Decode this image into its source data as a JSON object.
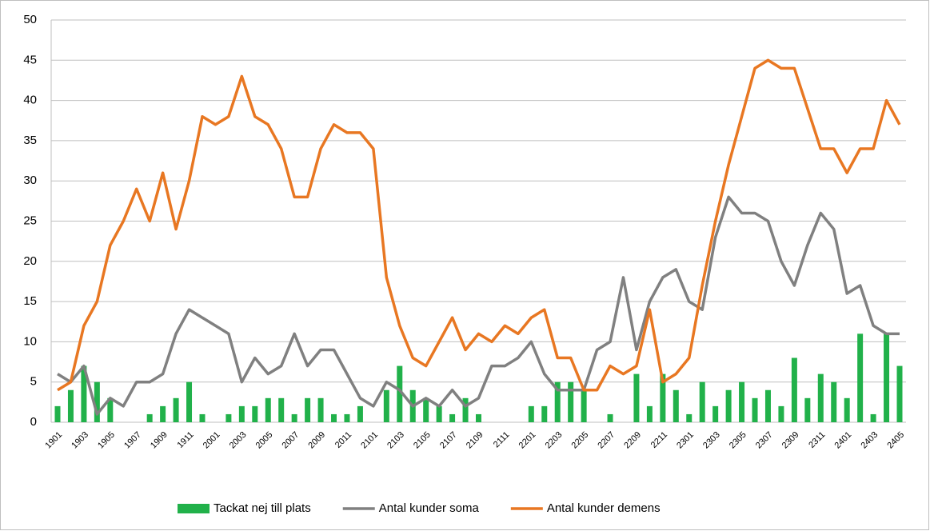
{
  "chart_data": {
    "type": "combo",
    "categories": [
      "1901",
      null,
      "1903",
      null,
      "1905",
      null,
      "1907",
      null,
      "1909",
      null,
      "1911",
      null,
      "2001",
      null,
      "2003",
      null,
      "2005",
      null,
      "2007",
      null,
      "2009",
      null,
      "2011",
      null,
      "2101",
      null,
      "2103",
      null,
      "2105",
      null,
      "2107",
      null,
      "2109",
      null,
      "2111",
      null,
      "2201",
      null,
      "2203",
      null,
      "2205",
      null,
      "2207",
      null,
      "2209",
      null,
      "2211",
      null,
      "2301",
      null,
      "2303",
      null,
      "2305",
      null,
      "2307",
      null,
      "2309",
      null,
      "2311",
      null,
      "2401",
      null,
      "2403",
      null,
      "2405"
    ],
    "series": [
      {
        "name": "Tackat nej till plats",
        "kind": "bar",
        "color": "#21b14a",
        "values": [
          2,
          4,
          7,
          5,
          3,
          0,
          0,
          1,
          2,
          3,
          5,
          1,
          0,
          1,
          2,
          2,
          3,
          3,
          1,
          3,
          3,
          1,
          1,
          2,
          0,
          4,
          7,
          4,
          3,
          2,
          1,
          3,
          1,
          0,
          0,
          0,
          2,
          2,
          5,
          5,
          4,
          0,
          1,
          0,
          6,
          2,
          6,
          4,
          1,
          5,
          2,
          4,
          5,
          3,
          4,
          2,
          8,
          3,
          6,
          5,
          3,
          11,
          1,
          11,
          7
        ]
      },
      {
        "name": "Antal kunder soma",
        "kind": "line",
        "color": "#808080",
        "values": [
          6,
          5,
          7,
          1,
          3,
          2,
          5,
          5,
          6,
          11,
          14,
          13,
          12,
          11,
          5,
          8,
          6,
          7,
          11,
          7,
          9,
          9,
          6,
          3,
          2,
          5,
          4,
          2,
          3,
          2,
          4,
          2,
          3,
          7,
          7,
          8,
          10,
          6,
          4,
          4,
          4,
          9,
          10,
          18,
          9,
          15,
          18,
          19,
          15,
          14,
          23,
          28,
          26,
          26,
          25,
          20,
          17,
          22,
          26,
          24,
          16,
          17,
          12,
          11,
          11
        ]
      },
      {
        "name": "Antal kunder demens",
        "kind": "line",
        "color": "#e87722",
        "values": [
          4,
          5,
          12,
          15,
          22,
          25,
          29,
          25,
          31,
          24,
          30,
          38,
          37,
          38,
          43,
          38,
          37,
          34,
          28,
          28,
          34,
          37,
          36,
          36,
          34,
          18,
          12,
          8,
          7,
          10,
          13,
          9,
          11,
          10,
          12,
          11,
          13,
          14,
          8,
          8,
          4,
          4,
          7,
          6,
          7,
          14,
          5,
          6,
          8,
          17,
          25,
          32,
          38,
          44,
          45,
          44,
          44,
          39,
          34,
          34,
          31,
          34,
          34,
          40,
          37
        ]
      }
    ],
    "ylim": [
      0,
      50
    ],
    "yticks": [
      0,
      5,
      10,
      15,
      20,
      25,
      30,
      35,
      40,
      45,
      50
    ],
    "grid": true,
    "legend": "bottom"
  }
}
